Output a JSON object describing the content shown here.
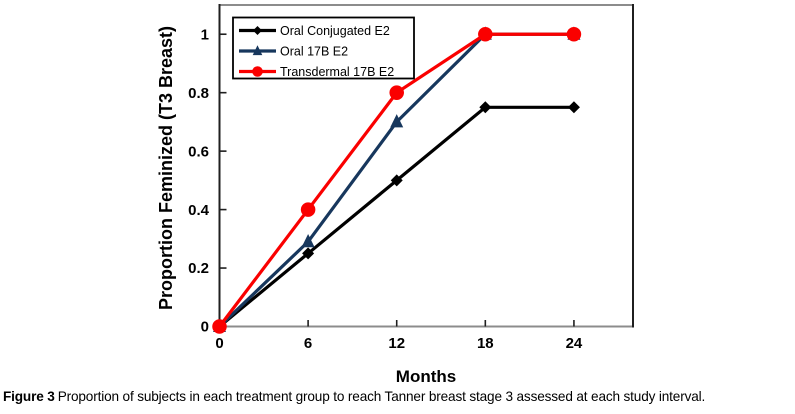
{
  "figure": {
    "caption_label": "Figure 3",
    "caption_text": "Proportion of subjects in each treatment group to reach Tanner breast stage 3 assessed at each study interval."
  },
  "chart_data": {
    "type": "line",
    "title": "",
    "xlabel": "Months",
    "ylabel": "Proportion Feminized (T3 Breast)",
    "x": [
      0,
      6,
      12,
      18,
      24
    ],
    "xticks": [
      0,
      6,
      12,
      18,
      24
    ],
    "yticks": [
      0,
      0.2,
      0.4,
      0.6,
      0.8,
      1
    ],
    "ytick_labels": [
      "0",
      "0.2",
      "0.4",
      "0.6",
      "0.8",
      "1"
    ],
    "xlim": [
      0,
      28
    ],
    "ylim": [
      0,
      1.1
    ],
    "grid": false,
    "legend_position": "upper-left-inside",
    "series": [
      {
        "name": "Oral Conjugated E2",
        "color": "#000000",
        "marker": "diamond",
        "values": [
          0,
          0.25,
          0.5,
          0.75,
          0.75
        ]
      },
      {
        "name": "Oral 17B E2",
        "color": "#17375D",
        "marker": "triangle",
        "values": [
          0,
          0.29,
          0.7,
          1,
          1
        ]
      },
      {
        "name": "Transdermal 17B E2",
        "color": "#FA0000",
        "marker": "circle",
        "values": [
          0,
          0.4,
          0.8,
          1,
          1
        ]
      }
    ],
    "frame_color_horizontal": "#8C8C8C",
    "frame_color_vertical": "#1F1F1F",
    "tick_color": "#1F1F1F",
    "legend_border_color": "#000000"
  }
}
